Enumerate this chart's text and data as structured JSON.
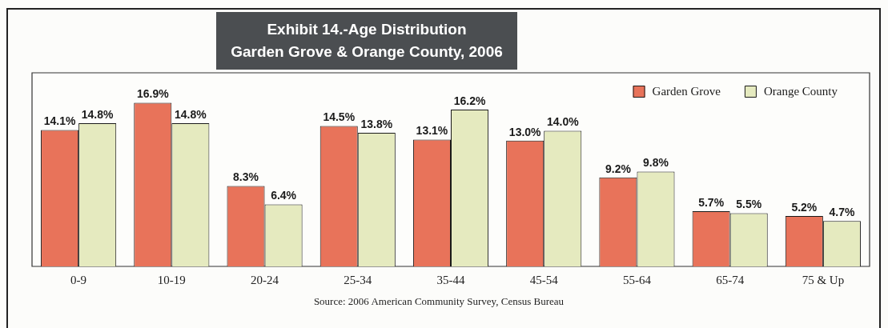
{
  "chart_data": {
    "type": "bar",
    "title": "Exhibit 14.-Age Distribution\nGarden Grove & Orange County, 2006",
    "categories": [
      "0-9",
      "10-19",
      "20-24",
      "25-34",
      "35-44",
      "45-54",
      "55-64",
      "65-74",
      "75 & Up"
    ],
    "series": [
      {
        "name": "Garden Grove",
        "color": "#e8735a",
        "values": [
          14.1,
          16.9,
          8.3,
          14.5,
          13.1,
          13.0,
          9.2,
          5.7,
          5.2
        ],
        "value_labels": [
          "14.1%",
          "16.9%",
          "8.3%",
          "14.5%",
          "13.1%",
          "13.0%",
          "9.2%",
          "5.7%",
          "5.2%"
        ]
      },
      {
        "name": "Orange County",
        "color": "#e5eabf",
        "values": [
          14.8,
          14.8,
          6.4,
          13.8,
          16.2,
          14.0,
          9.8,
          5.5,
          4.7
        ],
        "value_labels": [
          "14.8%",
          "14.8%",
          "6.4%",
          "13.8%",
          "16.2%",
          "14.0%",
          "9.8%",
          "5.5%",
          "4.7%"
        ]
      }
    ],
    "ylim": [
      0,
      20
    ],
    "tick_labels": "x",
    "legend": "top right",
    "annotations": [
      "Source: 2006 American Community Survey, Census Bureau"
    ]
  }
}
